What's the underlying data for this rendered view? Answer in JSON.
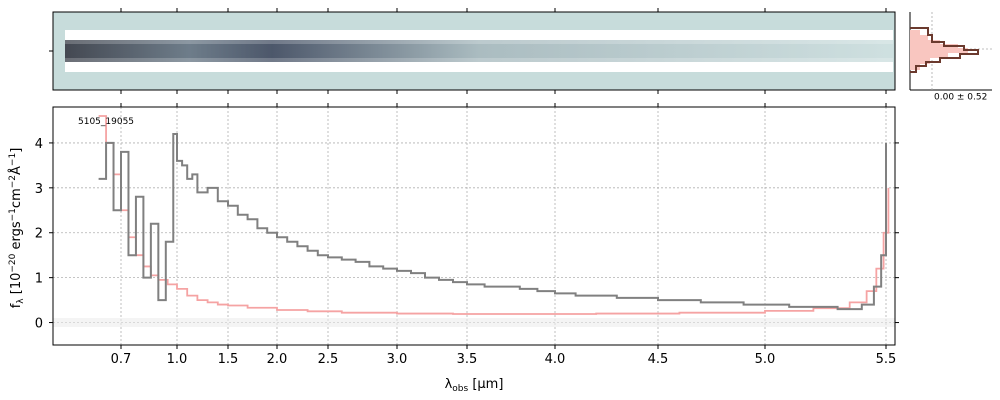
{
  "chart_data": {
    "type": "line",
    "object_label": "5105_19055",
    "xlabel_main": "λ",
    "xlabel_sub": "obs",
    "xlabel_unit": " [μm]",
    "ylabel": "f_λ [10^-20 ergs^-1 cm^-2 Å^-1]",
    "x_ticks": [
      0.7,
      1.0,
      1.5,
      2.0,
      2.5,
      3.0,
      3.5,
      4.0,
      4.5,
      5.0,
      5.5
    ],
    "x_tick_labels": [
      "0.7",
      "1.0",
      "1.5",
      "2.0",
      "2.5",
      "3.0",
      "3.5",
      "4.0",
      "4.5",
      "5.0",
      "5.5"
    ],
    "y_ticks": [
      0,
      1,
      2,
      3,
      4
    ],
    "y_tick_labels": [
      "0",
      "1",
      "2",
      "3",
      "4"
    ],
    "ylim": [
      -0.5,
      4.8
    ],
    "xlim": [
      0.55,
      5.52
    ],
    "grid": true,
    "profile_label": "0.00 ± 0.52",
    "series": [
      {
        "color": "#808080",
        "x": [
          0.58,
          0.62,
          0.66,
          0.7,
          0.74,
          0.78,
          0.82,
          0.86,
          0.9,
          0.94,
          0.98,
          1.0,
          1.05,
          1.1,
          1.15,
          1.2,
          1.3,
          1.4,
          1.5,
          1.6,
          1.7,
          1.8,
          1.9,
          2.0,
          2.1,
          2.2,
          2.3,
          2.4,
          2.5,
          2.6,
          2.7,
          2.8,
          2.9,
          3.0,
          3.1,
          3.2,
          3.3,
          3.4,
          3.5,
          3.6,
          3.7,
          3.8,
          3.9,
          4.0,
          4.1,
          4.2,
          4.3,
          4.4,
          4.5,
          4.6,
          4.7,
          4.8,
          4.9,
          5.0,
          5.1,
          5.2,
          5.3,
          5.4,
          5.45,
          5.48,
          5.5
        ],
        "y": [
          3.2,
          4.0,
          2.5,
          3.8,
          1.5,
          2.8,
          1.0,
          2.2,
          0.5,
          1.8,
          4.2,
          3.6,
          3.5,
          3.2,
          3.3,
          2.9,
          3.0,
          2.7,
          2.6,
          2.4,
          2.3,
          2.1,
          2.0,
          1.9,
          1.8,
          1.7,
          1.6,
          1.5,
          1.45,
          1.4,
          1.35,
          1.25,
          1.2,
          1.15,
          1.1,
          1.0,
          0.95,
          0.9,
          0.85,
          0.8,
          0.8,
          0.75,
          0.7,
          0.65,
          0.6,
          0.6,
          0.55,
          0.55,
          0.5,
          0.5,
          0.45,
          0.45,
          0.4,
          0.4,
          0.35,
          0.35,
          0.3,
          0.4,
          0.8,
          1.5,
          4.0
        ]
      },
      {
        "color": "#f5a3a3",
        "x": [
          0.58,
          0.62,
          0.66,
          0.7,
          0.74,
          0.78,
          0.82,
          0.86,
          0.9,
          0.95,
          1.0,
          1.1,
          1.2,
          1.3,
          1.4,
          1.5,
          1.7,
          2.0,
          2.3,
          2.6,
          3.0,
          3.4,
          3.8,
          4.2,
          4.6,
          5.0,
          5.2,
          5.35,
          5.42,
          5.46,
          5.49,
          5.51
        ],
        "y": [
          4.6,
          4.0,
          3.3,
          2.5,
          1.9,
          1.5,
          1.25,
          1.05,
          0.95,
          0.85,
          0.75,
          0.6,
          0.5,
          0.45,
          0.4,
          0.38,
          0.33,
          0.28,
          0.25,
          0.22,
          0.2,
          0.19,
          0.19,
          0.2,
          0.22,
          0.26,
          0.32,
          0.45,
          0.7,
          1.2,
          2.0,
          3.0
        ]
      }
    ]
  }
}
